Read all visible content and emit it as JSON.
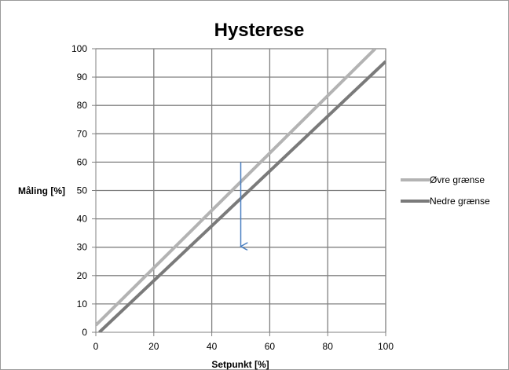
{
  "chart_data": {
    "type": "line",
    "title": "Hysterese",
    "xlabel": "Setpunkt [%]",
    "ylabel": "Måling [%]",
    "xlim": [
      0,
      100
    ],
    "ylim": [
      0,
      100
    ],
    "xticks": [
      0,
      20,
      40,
      60,
      80,
      100
    ],
    "yticks": [
      0,
      10,
      20,
      30,
      40,
      50,
      60,
      70,
      80,
      90,
      100
    ],
    "grid": true,
    "legend_position": "right",
    "series": [
      {
        "name": "Øvre grænse",
        "color": "#b3b3b3",
        "x": [
          0,
          96.4
        ],
        "y": [
          2.5,
          100
        ]
      },
      {
        "name": "Nedre grænse",
        "color": "#7a7a7a",
        "x": [
          1.2,
          100
        ],
        "y": [
          0,
          95.5
        ]
      }
    ],
    "annotations": [
      {
        "type": "arrow",
        "color": "#4a7fc1",
        "x": 50,
        "y_from": 60,
        "y_to": 30
      }
    ]
  }
}
